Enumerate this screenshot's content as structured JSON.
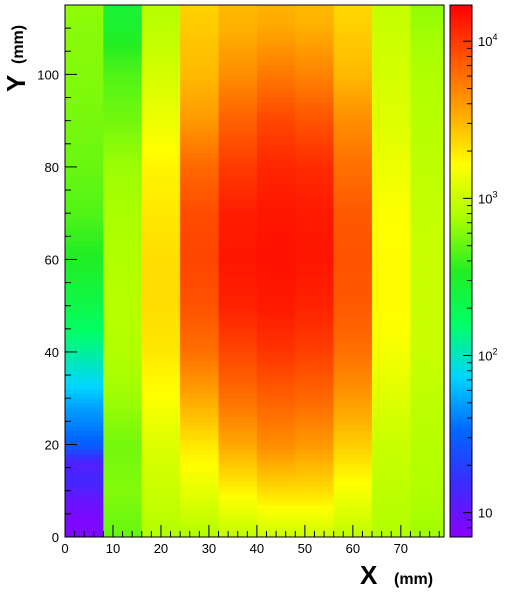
{
  "chart_data": {
    "type": "heatmap",
    "x_title": "X",
    "x_unit": "(mm)",
    "y_title": "Y",
    "y_unit": "(mm)",
    "x_range": [
      0,
      79
    ],
    "y_range": [
      0,
      115
    ],
    "x_ticks": [
      0,
      10,
      20,
      30,
      40,
      50,
      60,
      70
    ],
    "y_ticks": [
      0,
      20,
      40,
      60,
      80,
      100
    ],
    "x_bin_edges": [
      0,
      8,
      16,
      24,
      32,
      40,
      48,
      56,
      64,
      72,
      79
    ],
    "z_scale": "log",
    "z_range": [
      7,
      17000
    ],
    "z_ticks": [
      {
        "value": 10,
        "base": "10",
        "exp": ""
      },
      {
        "value": 100,
        "base": "10",
        "exp": "2"
      },
      {
        "value": 1000,
        "base": "10",
        "exp": "3"
      },
      {
        "value": 10000,
        "base": "10",
        "exp": "4"
      }
    ],
    "colormap": [
      "#8b00ff",
      "#3a2cff",
      "#0066ff",
      "#00d5ff",
      "#00ff66",
      "#22ee22",
      "#aaff00",
      "#ffff00",
      "#ffa500",
      "#ff5500",
      "#ff0000"
    ],
    "column_profiles": [
      [
        [
          0,
          8
        ],
        [
          4,
          8
        ],
        [
          8,
          10
        ],
        [
          12,
          14
        ],
        [
          16,
          12
        ],
        [
          20,
          30
        ],
        [
          24,
          40
        ],
        [
          28,
          50
        ],
        [
          32,
          70
        ],
        [
          36,
          90
        ],
        [
          40,
          120
        ],
        [
          50,
          220
        ],
        [
          60,
          330
        ],
        [
          70,
          450
        ],
        [
          80,
          520
        ],
        [
          90,
          560
        ],
        [
          100,
          600
        ],
        [
          110,
          620
        ],
        [
          115,
          650
        ]
      ],
      [
        [
          0,
          500
        ],
        [
          10,
          600
        ],
        [
          20,
          550
        ],
        [
          30,
          700
        ],
        [
          40,
          800
        ],
        [
          50,
          850
        ],
        [
          60,
          800
        ],
        [
          70,
          750
        ],
        [
          80,
          700
        ],
        [
          90,
          550
        ],
        [
          100,
          450
        ],
        [
          110,
          300
        ],
        [
          115,
          280
        ]
      ],
      [
        [
          0,
          800
        ],
        [
          10,
          1000
        ],
        [
          20,
          1200
        ],
        [
          30,
          1600
        ],
        [
          40,
          2000
        ],
        [
          50,
          2200
        ],
        [
          60,
          2200
        ],
        [
          70,
          2000
        ],
        [
          80,
          1800
        ],
        [
          90,
          1400
        ],
        [
          100,
          1100
        ],
        [
          110,
          900
        ],
        [
          115,
          850
        ]
      ],
      [
        [
          0,
          800
        ],
        [
          10,
          1300
        ],
        [
          20,
          2000
        ],
        [
          30,
          3500
        ],
        [
          40,
          6000
        ],
        [
          50,
          8000
        ],
        [
          60,
          9000
        ],
        [
          70,
          8500
        ],
        [
          80,
          6500
        ],
        [
          90,
          4000
        ],
        [
          100,
          3000
        ],
        [
          110,
          2600
        ],
        [
          115,
          2400
        ]
      ],
      [
        [
          0,
          900
        ],
        [
          10,
          1800
        ],
        [
          20,
          3500
        ],
        [
          30,
          6000
        ],
        [
          40,
          9000
        ],
        [
          50,
          12500
        ],
        [
          60,
          14000
        ],
        [
          70,
          13000
        ],
        [
          80,
          10000
        ],
        [
          90,
          7000
        ],
        [
          100,
          4500
        ],
        [
          110,
          3200
        ],
        [
          115,
          3000
        ]
      ],
      [
        [
          0,
          1000
        ],
        [
          10,
          2200
        ],
        [
          20,
          4500
        ],
        [
          30,
          7000
        ],
        [
          40,
          10500
        ],
        [
          50,
          13500
        ],
        [
          60,
          14500
        ],
        [
          70,
          14000
        ],
        [
          80,
          12000
        ],
        [
          90,
          9000
        ],
        [
          100,
          5500
        ],
        [
          110,
          3500
        ],
        [
          115,
          3200
        ]
      ],
      [
        [
          0,
          1000
        ],
        [
          10,
          2200
        ],
        [
          20,
          4000
        ],
        [
          30,
          6500
        ],
        [
          40,
          9500
        ],
        [
          50,
          12500
        ],
        [
          60,
          14000
        ],
        [
          70,
          13500
        ],
        [
          80,
          11500
        ],
        [
          90,
          8000
        ],
        [
          100,
          5000
        ],
        [
          110,
          3300
        ],
        [
          115,
          3000
        ]
      ],
      [
        [
          0,
          900
        ],
        [
          10,
          1500
        ],
        [
          20,
          2500
        ],
        [
          30,
          4000
        ],
        [
          40,
          6000
        ],
        [
          50,
          7500
        ],
        [
          60,
          8000
        ],
        [
          70,
          7500
        ],
        [
          80,
          6000
        ],
        [
          90,
          4500
        ],
        [
          100,
          3000
        ],
        [
          110,
          2500
        ],
        [
          115,
          2300
        ]
      ],
      [
        [
          0,
          800
        ],
        [
          10,
          900
        ],
        [
          20,
          1000
        ],
        [
          30,
          1200
        ],
        [
          40,
          1500
        ],
        [
          50,
          1700
        ],
        [
          60,
          1700
        ],
        [
          70,
          1600
        ],
        [
          80,
          1400
        ],
        [
          90,
          1200
        ],
        [
          100,
          1100
        ],
        [
          110,
          1000
        ],
        [
          115,
          950
        ]
      ],
      [
        [
          0,
          700
        ],
        [
          10,
          800
        ],
        [
          20,
          850
        ],
        [
          30,
          900
        ],
        [
          40,
          1000
        ],
        [
          50,
          1000
        ],
        [
          60,
          1000
        ],
        [
          70,
          950
        ],
        [
          80,
          900
        ],
        [
          90,
          850
        ],
        [
          100,
          800
        ],
        [
          110,
          700
        ],
        [
          115,
          650
        ]
      ]
    ]
  }
}
